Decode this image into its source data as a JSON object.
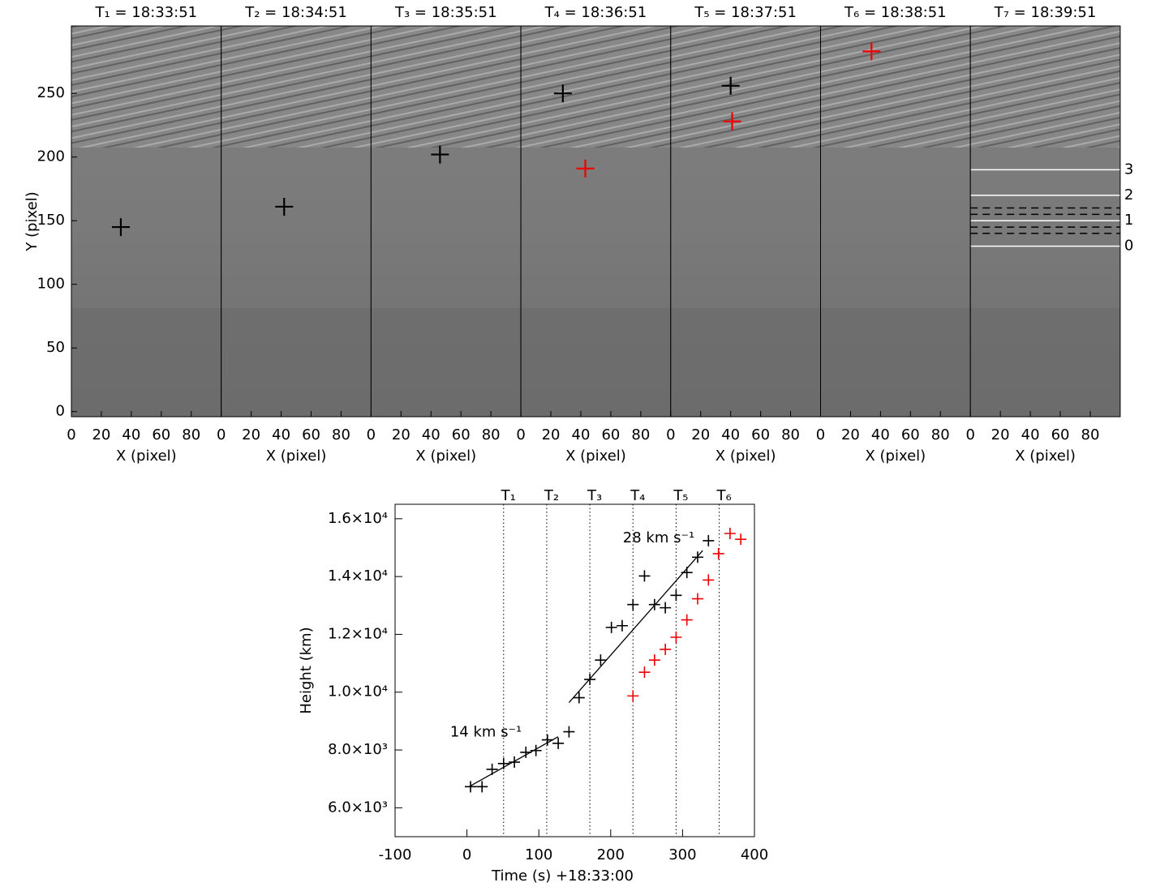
{
  "chart_data": [
    {
      "type": "image",
      "title": "T₁ = 18:33:51",
      "x_label": "X (pixel)",
      "y_label": "Y (pixel)",
      "xlim": [
        0,
        100
      ],
      "xticks": [
        0,
        20,
        40,
        60,
        80
      ],
      "ylim": [
        -4,
        303
      ],
      "yticks": [
        0,
        50,
        100,
        150,
        200,
        250
      ],
      "series": [
        {
          "color": "#000000",
          "x": [
            33
          ],
          "values": [
            145
          ]
        }
      ]
    },
    {
      "type": "image",
      "title": "T₂ = 18:34:51",
      "x_label": "X (pixel)",
      "xlim": [
        0,
        100
      ],
      "xticks": [
        0,
        20,
        40,
        60,
        80
      ],
      "ylim": [
        -4,
        303
      ],
      "series": [
        {
          "color": "#000000",
          "x": [
            42
          ],
          "values": [
            161
          ]
        }
      ]
    },
    {
      "type": "image",
      "title": "T₃ = 18:35:51",
      "x_label": "X (pixel)",
      "xlim": [
        0,
        100
      ],
      "xticks": [
        0,
        20,
        40,
        60,
        80
      ],
      "ylim": [
        -4,
        303
      ],
      "series": [
        {
          "color": "#000000",
          "x": [
            46
          ],
          "values": [
            202
          ]
        }
      ]
    },
    {
      "type": "image",
      "title": "T₄ = 18:36:51",
      "x_label": "X (pixel)",
      "xlim": [
        0,
        100
      ],
      "xticks": [
        0,
        20,
        40,
        60,
        80
      ],
      "ylim": [
        -4,
        303
      ],
      "series": [
        {
          "color": "#000000",
          "x": [
            28
          ],
          "values": [
            250
          ]
        },
        {
          "color": "#ee0000",
          "x": [
            43
          ],
          "values": [
            191
          ]
        }
      ]
    },
    {
      "type": "image",
      "title": "T₅ = 18:37:51",
      "x_label": "X (pixel)",
      "xlim": [
        0,
        100
      ],
      "xticks": [
        0,
        20,
        40,
        60,
        80
      ],
      "ylim": [
        -4,
        303
      ],
      "series": [
        {
          "color": "#000000",
          "x": [
            40
          ],
          "values": [
            256
          ]
        },
        {
          "color": "#ee0000",
          "x": [
            41
          ],
          "values": [
            228
          ]
        }
      ]
    },
    {
      "type": "image",
      "title": "T₆ = 18:38:51",
      "x_label": "X (pixel)",
      "xlim": [
        0,
        100
      ],
      "xticks": [
        0,
        20,
        40,
        60,
        80
      ],
      "ylim": [
        -4,
        303
      ],
      "series": [
        {
          "color": "#ee0000",
          "x": [
            34
          ],
          "values": [
            283
          ]
        }
      ]
    },
    {
      "type": "image",
      "title": "T₇ = 18:39:51",
      "x_label": "X (pixel)",
      "xlim": [
        0,
        100
      ],
      "xticks": [
        0,
        20,
        40,
        60,
        80
      ],
      "ylim": [
        -4,
        303
      ],
      "series": [],
      "levels": [
        {
          "value": 130,
          "label": "0"
        },
        {
          "value": 150,
          "label": "1"
        },
        {
          "value": 170,
          "label": "2"
        },
        {
          "value": 190,
          "label": "3"
        }
      ],
      "dashed_levels": [
        140,
        145,
        155,
        160
      ]
    },
    {
      "type": "scatter",
      "x_label": "Time (s) +18:33:00",
      "y_label": "Height (km)",
      "xlim": [
        -100,
        400
      ],
      "xticks": [
        -100,
        0,
        100,
        200,
        300,
        400
      ],
      "ylim": [
        5000,
        16500
      ],
      "yticks": [
        {
          "value": 6000,
          "label": "6.0×10³"
        },
        {
          "value": 8000,
          "label": "8.0×10³"
        },
        {
          "value": 10000,
          "label": "1.0×10⁴"
        },
        {
          "value": 12000,
          "label": "1.2×10⁴"
        },
        {
          "value": 14000,
          "label": "1.4×10⁴"
        },
        {
          "value": 16000,
          "label": "1.6×10⁴"
        }
      ],
      "markers": [
        {
          "value": 51,
          "label": "T₁"
        },
        {
          "value": 111,
          "label": "T₂"
        },
        {
          "value": 171,
          "label": "T₃"
        },
        {
          "value": 231,
          "label": "T₄"
        },
        {
          "value": 291,
          "label": "T₅"
        },
        {
          "value": 351,
          "label": "T₆"
        }
      ],
      "series": [
        {
          "color": "#000000",
          "x": [
            5,
            21,
            35,
            51,
            66,
            82,
            96,
            112,
            127,
            142,
            156,
            171,
            186,
            201,
            216,
            231,
            247,
            261,
            276,
            291,
            306,
            321,
            336
          ],
          "values": [
            6730,
            6730,
            7330,
            7530,
            7580,
            7920,
            7980,
            8350,
            8230,
            8630,
            9810,
            10440,
            11110,
            12240,
            12300,
            13030,
            14020,
            13030,
            12920,
            13350,
            14140,
            14670,
            15240
          ]
        },
        {
          "color": "#ee0000",
          "x": [
            231,
            247,
            261,
            276,
            291,
            306,
            321,
            336,
            350,
            366,
            381
          ],
          "values": [
            9870,
            10690,
            11110,
            11480,
            11900,
            12500,
            13230,
            13880,
            14790,
            15490,
            15290
          ]
        }
      ],
      "fits": [
        {
          "label": "14 km s⁻¹",
          "x": [
            3,
            127
          ],
          "values": [
            6730,
            8460
          ]
        },
        {
          "label": "28 km s⁻¹",
          "x": [
            142,
            328
          ],
          "values": [
            9640,
            14900
          ]
        }
      ]
    }
  ]
}
